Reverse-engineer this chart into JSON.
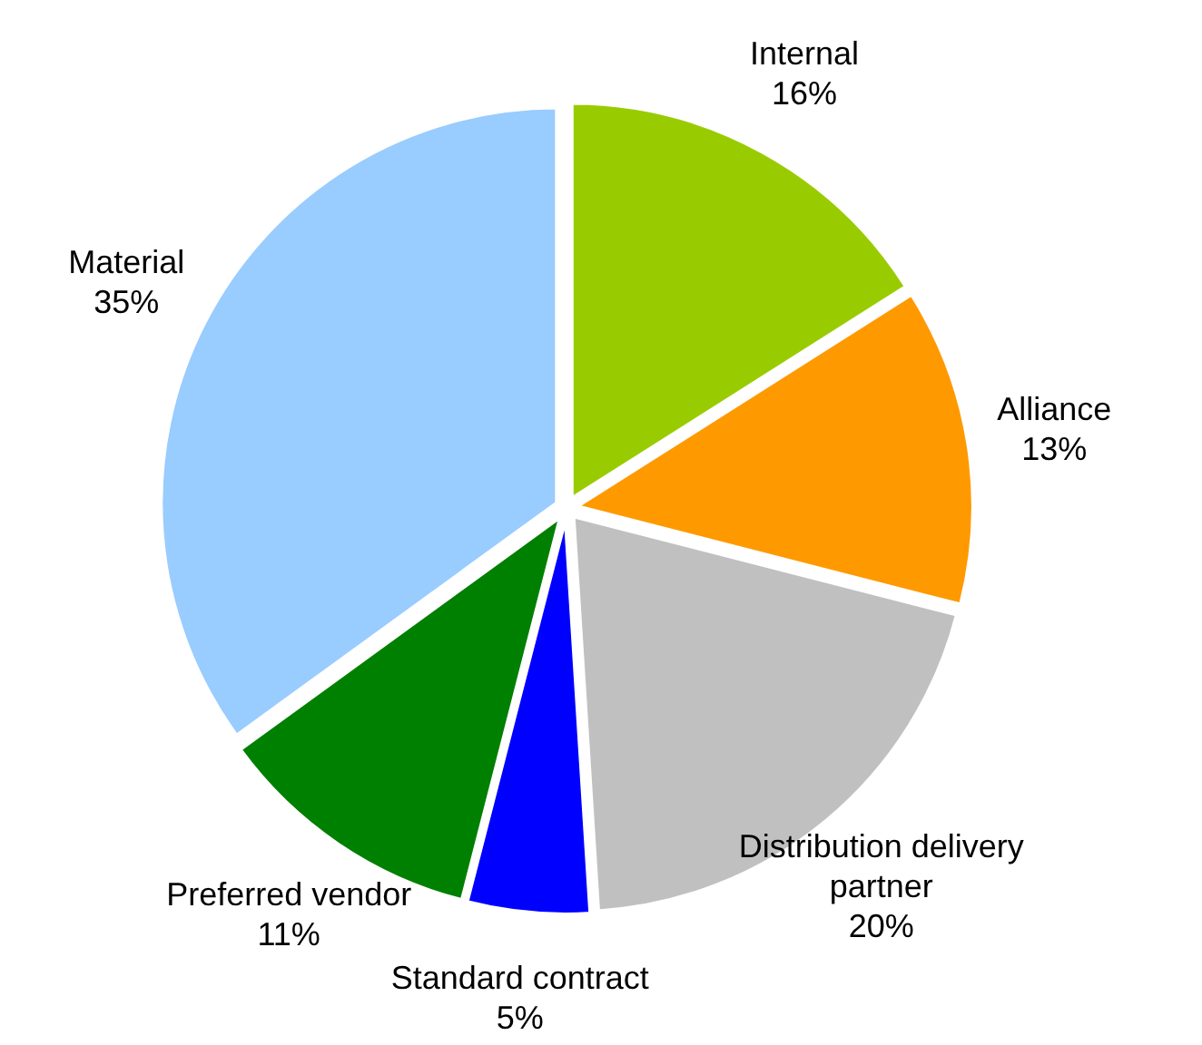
{
  "chart_data": {
    "type": "pie",
    "categories": [
      "Internal",
      "Alliance",
      "Distribution delivery partner",
      "Standard contract",
      "Preferred vendor",
      "Material"
    ],
    "values": [
      16,
      13,
      20,
      5,
      11,
      35
    ],
    "colors": [
      "#99cc00",
      "#ff9900",
      "#c0c0c0",
      "#0000ff",
      "#008000",
      "#99ccff"
    ],
    "value_labels": [
      "16%",
      "13%",
      "20%",
      "5%",
      "11%",
      "35%"
    ]
  }
}
